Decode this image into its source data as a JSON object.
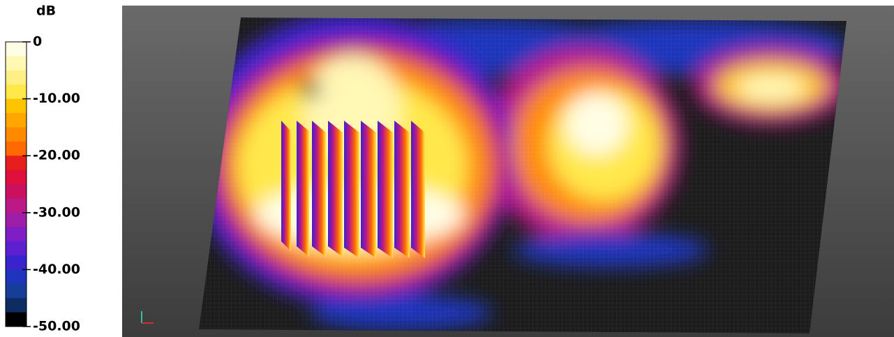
{
  "colorbar": {
    "title": "dB",
    "ticks": [
      0,
      {
        "value": -10,
        "label": "-10.00"
      },
      {
        "value": -20,
        "label": "-20.00"
      },
      {
        "value": -30,
        "label": "-30.00"
      },
      {
        "value": -40,
        "label": "-40.00"
      },
      {
        "value": -50,
        "label": "-50.00"
      }
    ],
    "range": [
      -50,
      0
    ],
    "colors": [
      "#fffde4",
      "#fff7b4",
      "#ffef84",
      "#ffe84a",
      "#ffc400",
      "#ffa600",
      "#ff8a00",
      "#ff6a00",
      "#e81e1e",
      "#e0103c",
      "#cc1060",
      "#bb1888",
      "#9e1ea8",
      "#7e1ec4",
      "#5c20d0",
      "#3a22cc",
      "#1e34bc",
      "#163e98",
      "#0e2c64",
      "#000000"
    ]
  }
}
